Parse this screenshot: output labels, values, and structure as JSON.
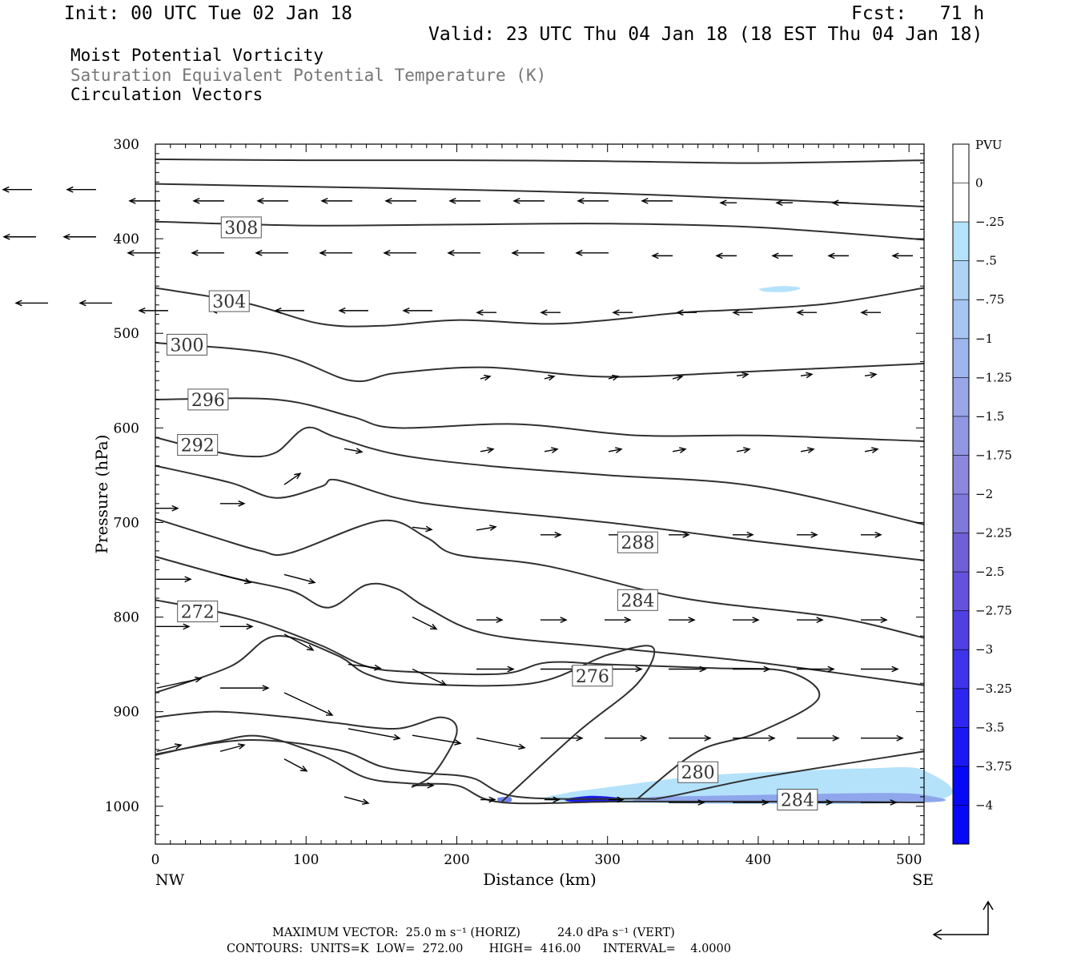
{
  "header": {
    "init": "Init: 00 UTC Tue 02 Jan 18",
    "fcst": "Fcst:   71 h",
    "valid": "Valid: 23 UTC Thu 04 Jan 18 (18 EST Thu 04 Jan 18)"
  },
  "fields": [
    {
      "label": "Moist Potential Vorticity",
      "color": "#000000"
    },
    {
      "label": "Saturation Equivalent Potential Temperature (K)",
      "color": "#777777"
    },
    {
      "label": "Circulation Vectors",
      "color": "#000000"
    }
  ],
  "chart_data": {
    "type": "cross-section",
    "xlabel": "Distance (km)",
    "ylabel": "Pressure (hPa)",
    "xlim": [
      0,
      510
    ],
    "ylim": [
      1040,
      300
    ],
    "x_ticks": [
      0,
      100,
      200,
      300,
      400,
      500
    ],
    "y_ticks": [
      300,
      400,
      500,
      600,
      700,
      800,
      900,
      1000
    ],
    "x_end_labels": {
      "left": "NW",
      "right": "SE"
    },
    "theta_es_contours": [
      {
        "level": "",
        "points": [
          [
            0,
            316
          ],
          [
            100,
            317
          ],
          [
            200,
            317
          ],
          [
            300,
            318
          ],
          [
            400,
            320
          ],
          [
            510,
            317
          ]
        ]
      },
      {
        "level": "",
        "points": [
          [
            0,
            342
          ],
          [
            100,
            345
          ],
          [
            200,
            348
          ],
          [
            300,
            352
          ],
          [
            400,
            358
          ],
          [
            510,
            366
          ]
        ]
      },
      {
        "level": "308",
        "label_at": [
          57,
          388
        ],
        "points": [
          [
            0,
            382
          ],
          [
            100,
            386
          ],
          [
            200,
            385
          ],
          [
            300,
            384
          ],
          [
            400,
            388
          ],
          [
            510,
            401
          ]
        ]
      },
      {
        "level": "304",
        "label_at": [
          49,
          466
        ],
        "points": [
          [
            0,
            452
          ],
          [
            60,
            468
          ],
          [
            110,
            490
          ],
          [
            150,
            492
          ],
          [
            200,
            486
          ],
          [
            260,
            490
          ],
          [
            300,
            486
          ],
          [
            350,
            478
          ],
          [
            400,
            474
          ],
          [
            450,
            468
          ],
          [
            510,
            452
          ]
        ]
      },
      {
        "level": "300",
        "label_at": [
          21,
          512
        ],
        "points": [
          [
            0,
            510
          ],
          [
            80,
            522
          ],
          [
            130,
            550
          ],
          [
            160,
            542
          ],
          [
            220,
            536
          ],
          [
            300,
            546
          ],
          [
            400,
            540
          ],
          [
            510,
            532
          ]
        ]
      },
      {
        "level": "296",
        "label_at": [
          35,
          570
        ],
        "points": [
          [
            0,
            570
          ],
          [
            80,
            570
          ],
          [
            130,
            588
          ],
          [
            160,
            600
          ],
          [
            240,
            596
          ],
          [
            320,
            608
          ],
          [
            400,
            608
          ],
          [
            510,
            614
          ]
        ]
      },
      {
        "level": "292",
        "label_at": [
          28,
          618
        ],
        "points": [
          [
            0,
            610
          ],
          [
            30,
            622
          ],
          [
            60,
            630
          ],
          [
            80,
            626
          ],
          [
            100,
            600
          ],
          [
            120,
            610
          ],
          [
            160,
            628
          ],
          [
            220,
            640
          ],
          [
            300,
            650
          ],
          [
            400,
            662
          ],
          [
            510,
            702
          ]
        ]
      },
      {
        "level": "288",
        "label_at": [
          320,
          721
        ],
        "points": [
          [
            0,
            640
          ],
          [
            50,
            658
          ],
          [
            80,
            674
          ],
          [
            110,
            662
          ],
          [
            120,
            655
          ],
          [
            160,
            674
          ],
          [
            200,
            684
          ],
          [
            300,
            700
          ],
          [
            400,
            720
          ],
          [
            510,
            740
          ]
        ]
      },
      {
        "level": "284",
        "label_at": [
          320,
          782
        ],
        "points": [
          [
            0,
            696
          ],
          [
            40,
            716
          ],
          [
            70,
            730
          ],
          [
            90,
            732
          ],
          [
            150,
            698
          ],
          [
            180,
            716
          ],
          [
            200,
            734
          ],
          [
            260,
            746
          ],
          [
            350,
            780
          ],
          [
            450,
            800
          ],
          [
            510,
            822
          ]
        ]
      },
      {
        "level": "",
        "points": [
          [
            0,
            736
          ],
          [
            50,
            758
          ],
          [
            90,
            772
          ],
          [
            115,
            790
          ],
          [
            140,
            766
          ],
          [
            160,
            770
          ],
          [
            180,
            790
          ],
          [
            220,
            818
          ],
          [
            300,
            832
          ],
          [
            400,
            848
          ],
          [
            510,
            872
          ]
        ]
      },
      {
        "level": "272",
        "label_at": [
          28,
          794
        ],
        "points": [
          [
            0,
            782
          ],
          [
            40,
            794
          ],
          [
            70,
            806
          ],
          [
            110,
            830
          ],
          [
            140,
            852
          ],
          [
            170,
            858
          ],
          [
            230,
            860
          ],
          [
            260,
            848
          ],
          [
            300,
            850
          ],
          [
            370,
            854
          ],
          [
            420,
            858
          ],
          [
            440,
            886
          ],
          [
            400,
            922
          ],
          [
            360,
            942
          ],
          [
            320,
            992
          ]
        ]
      },
      {
        "level": "276",
        "label_at": [
          290,
          862
        ],
        "points": [
          [
            0,
            880
          ],
          [
            50,
            852
          ],
          [
            80,
            820
          ],
          [
            120,
            840
          ],
          [
            140,
            860
          ],
          [
            170,
            870
          ],
          [
            250,
            870
          ],
          [
            300,
            840
          ],
          [
            330,
            832
          ],
          [
            320,
            870
          ],
          [
            280,
            922
          ],
          [
            230,
            995
          ]
        ]
      },
      {
        "level": "280",
        "label_at": [
          360,
          964
        ],
        "points": [
          [
            0,
            945
          ],
          [
            60,
            930
          ],
          [
            120,
            940
          ],
          [
            150,
            958
          ],
          [
            180,
            965
          ],
          [
            210,
            970
          ],
          [
            240,
            990
          ],
          [
            320,
            992
          ],
          [
            340,
            990
          ],
          [
            400,
            970
          ],
          [
            510,
            942
          ]
        ]
      },
      {
        "level": "",
        "points": [
          [
            0,
            906
          ],
          [
            40,
            900
          ],
          [
            90,
            906
          ],
          [
            120,
            912
          ],
          [
            160,
            918
          ],
          [
            190,
            906
          ],
          [
            200,
            922
          ],
          [
            185,
            965
          ],
          [
            170,
            980
          ]
        ]
      },
      {
        "level": "284",
        "label_at": [
          426,
          993
        ],
        "points": [
          [
            0,
            946
          ],
          [
            40,
            932
          ],
          [
            70,
            926
          ],
          [
            110,
            946
          ],
          [
            140,
            970
          ],
          [
            170,
            976
          ],
          [
            200,
            978
          ],
          [
            230,
            996
          ],
          [
            310,
            995
          ],
          [
            400,
            995
          ],
          [
            510,
            996
          ]
        ]
      }
    ],
    "mpv_colorbar": {
      "unit": "PVU",
      "labels": [
        "0",
        "-.25",
        "-.5",
        "-.75",
        "-1",
        "-1.25",
        "-1.5",
        "-1.75",
        "-2",
        "-2.25",
        "-2.5",
        "-2.75",
        "-3",
        "-3.25",
        "-3.5",
        "-3.75",
        "-4"
      ],
      "colors": [
        "#ffffff",
        "#ffffff",
        "#b4e2fb",
        "#aed3f6",
        "#a7c4f2",
        "#a0b5ed",
        "#99a6e8",
        "#9297e3",
        "#8b88de",
        "#7f79d9",
        "#7060d8",
        "#6452de",
        "#5040e4",
        "#3e34ea",
        "#2c26f0",
        "#1c18f5",
        "#0808f8"
      ]
    },
    "mpv_regions": [
      {
        "value": -0.3,
        "points": [
          [
            400,
            453
          ],
          [
            415,
            450
          ],
          [
            428,
            452
          ],
          [
            420,
            456
          ],
          [
            405,
            456
          ]
        ]
      },
      {
        "value": -0.4,
        "points": [
          [
            275,
            985
          ],
          [
            300,
            980
          ],
          [
            360,
            968
          ],
          [
            420,
            963
          ],
          [
            470,
            960
          ],
          [
            510,
            962
          ],
          [
            510,
            995
          ],
          [
            275,
            995
          ]
        ]
      }
    ],
    "maximum_vector": {
      "horizontal": "25.0 m s⁻¹ (HORIZ)",
      "vertical": "24.0 dPa s⁻¹ (VERT)"
    },
    "contours_summary": {
      "units": "K",
      "low": "272.00",
      "high": "416.00",
      "interval": "4.0000"
    }
  },
  "footer": {
    "max_vector_line": "MAXIMUM VECTOR:  25.0 m s⁻¹ (HORIZ)          24.0 dPa s⁻¹ (VERT)",
    "contours_line": "CONTOURS:  UNITS=K  LOW=  272.00       HIGH=  416.00      INTERVAL=    4.0000"
  }
}
